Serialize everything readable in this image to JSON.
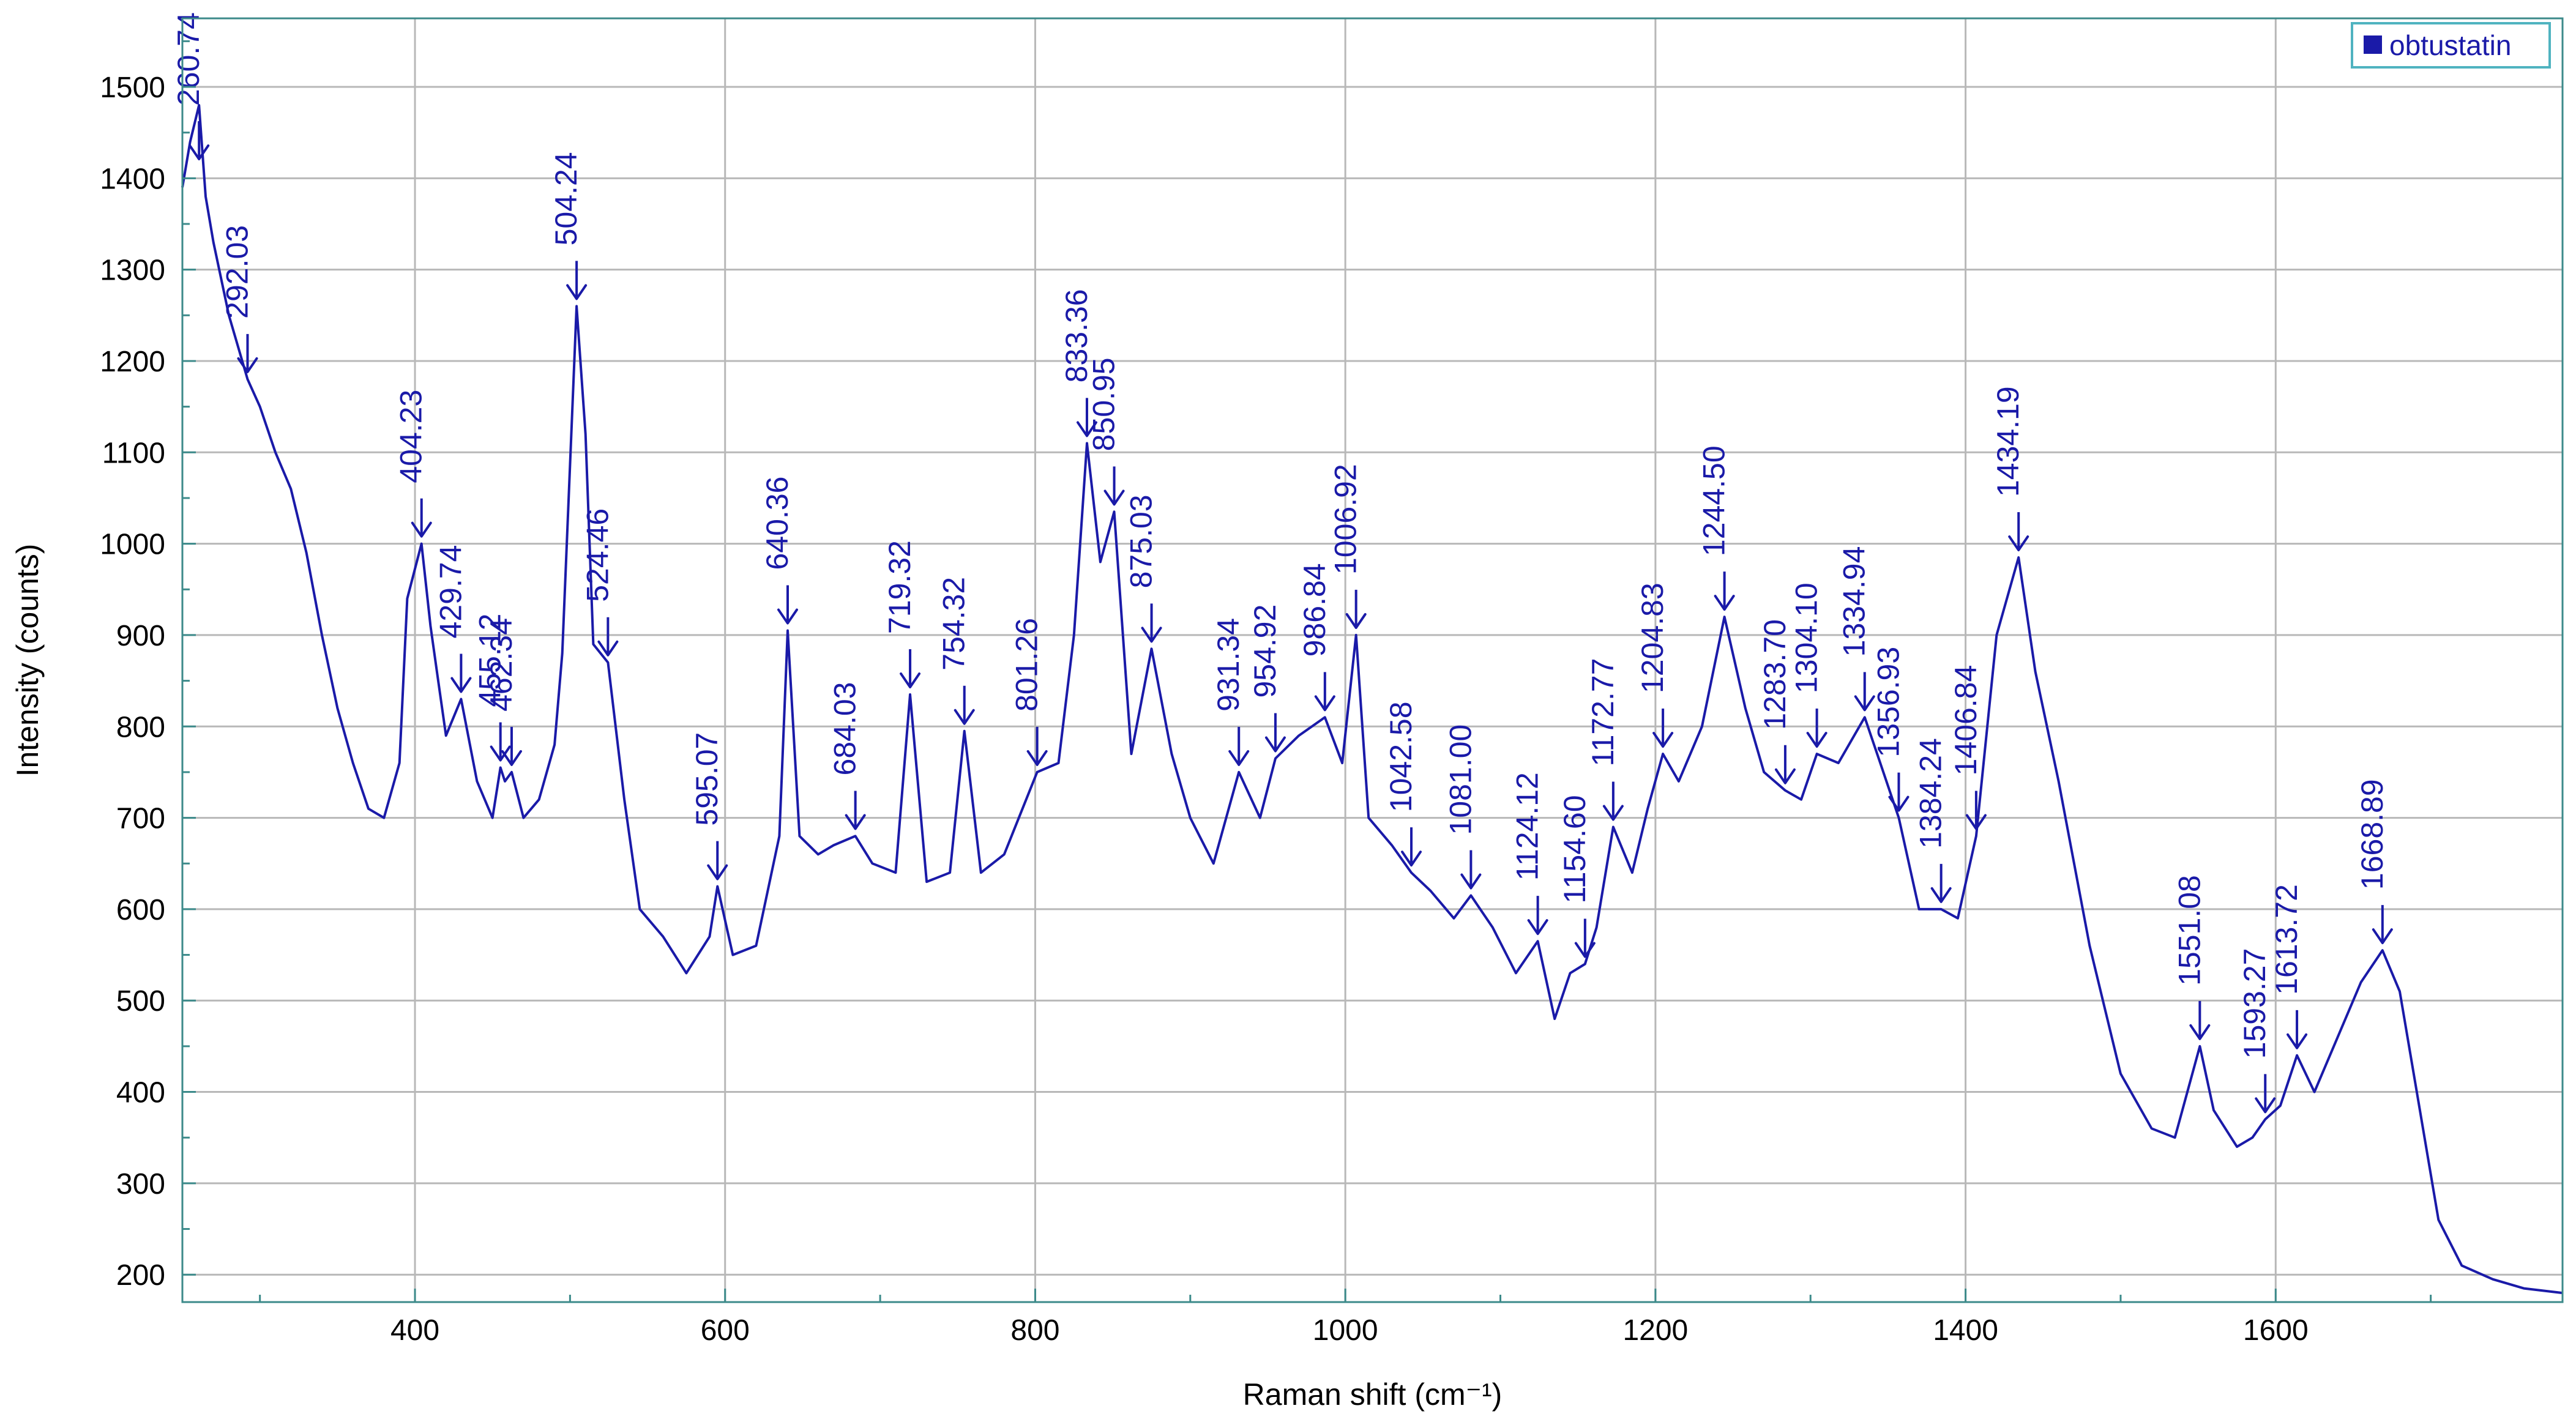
{
  "chart_data": {
    "type": "line",
    "title": "",
    "xlabel": "Raman shift (cm⁻¹)",
    "ylabel": "Intensity (counts)",
    "xlim": [
      250,
      1785
    ],
    "ylim": [
      170,
      1575
    ],
    "grid": true,
    "legend_position": "top-right",
    "x_ticks": [
      400,
      600,
      800,
      1000,
      1200,
      1400,
      1600
    ],
    "y_ticks": [
      200,
      300,
      400,
      500,
      600,
      700,
      800,
      900,
      1000,
      1100,
      1200,
      1300,
      1400,
      1500
    ],
    "colors": {
      "series": "#1a1aa8",
      "grid": "#b8b8b8",
      "axis": "#3c8a8a",
      "legend_border": "#4fb3c0"
    },
    "series": [
      {
        "name": "obtustatin",
        "x": [
          250,
          255,
          260.74,
          265,
          270,
          280,
          292.03,
          300,
          310,
          320,
          330,
          340,
          350,
          360,
          370,
          380,
          390,
          395,
          404.23,
          410,
          415,
          420,
          429.74,
          440,
          450,
          455.12,
          458,
          462.34,
          470,
          480,
          490,
          495,
          504.24,
          510,
          515,
          524.46,
          535,
          545,
          560,
          575,
          590,
          595.07,
          605,
          620,
          635,
          640.36,
          648,
          660,
          670,
          684.03,
          695,
          710,
          719.32,
          730,
          745,
          754.32,
          765,
          780,
          801.26,
          815,
          825,
          833.36,
          842,
          850.95,
          862,
          875.03,
          888,
          900,
          915,
          931.34,
          945,
          954.92,
          970,
          986.84,
          998,
          1006.92,
          1015,
          1030,
          1042.58,
          1055,
          1070,
          1081.0,
          1095,
          1110,
          1124.12,
          1135,
          1145,
          1154.6,
          1162,
          1172.77,
          1185,
          1195,
          1204.83,
          1215,
          1230,
          1244.5,
          1258,
          1270,
          1283.7,
          1294,
          1304.1,
          1318,
          1334.94,
          1345,
          1356.93,
          1370,
          1384.24,
          1395,
          1406.84,
          1420,
          1434.19,
          1445,
          1460,
          1480,
          1500,
          1520,
          1535,
          1551.08,
          1560,
          1575,
          1585,
          1593.27,
          1603,
          1613.72,
          1625,
          1640,
          1655,
          1668.89,
          1680,
          1692,
          1705,
          1720,
          1740,
          1760,
          1785
        ],
        "y": [
          1390,
          1440,
          1480,
          1380,
          1330,
          1250,
          1180,
          1150,
          1100,
          1060,
          990,
          900,
          820,
          760,
          710,
          700,
          760,
          940,
          1000,
          910,
          850,
          790,
          830,
          740,
          700,
          755,
          740,
          750,
          700,
          720,
          780,
          880,
          1260,
          1120,
          890,
          870,
          720,
          600,
          570,
          530,
          570,
          625,
          550,
          560,
          680,
          905,
          680,
          660,
          670,
          680,
          650,
          640,
          835,
          630,
          640,
          795,
          640,
          660,
          750,
          760,
          900,
          1110,
          980,
          1035,
          770,
          885,
          770,
          700,
          650,
          750,
          700,
          765,
          790,
          810,
          760,
          900,
          700,
          670,
          640,
          620,
          590,
          615,
          580,
          530,
          565,
          480,
          530,
          540,
          580,
          690,
          640,
          710,
          770,
          740,
          800,
          920,
          820,
          750,
          730,
          720,
          770,
          760,
          810,
          760,
          700,
          600,
          600,
          590,
          680,
          900,
          985,
          860,
          740,
          560,
          420,
          360,
          350,
          450,
          380,
          340,
          350,
          370,
          385,
          440,
          400,
          460,
          520,
          555,
          510,
          390,
          260,
          210,
          195,
          185,
          180
        ]
      }
    ],
    "peak_labels": [
      260.74,
      292.03,
      404.23,
      429.74,
      455.12,
      462.34,
      504.24,
      524.46,
      595.07,
      640.36,
      684.03,
      719.32,
      754.32,
      801.26,
      833.36,
      850.95,
      875.03,
      931.34,
      954.92,
      986.84,
      1006.92,
      1042.58,
      1081.0,
      1124.12,
      1154.6,
      1172.77,
      1204.83,
      1244.5,
      1283.7,
      1304.1,
      1334.94,
      1356.93,
      1384.24,
      1406.84,
      1434.19,
      1551.08,
      1593.27,
      1613.72,
      1668.89
    ]
  }
}
